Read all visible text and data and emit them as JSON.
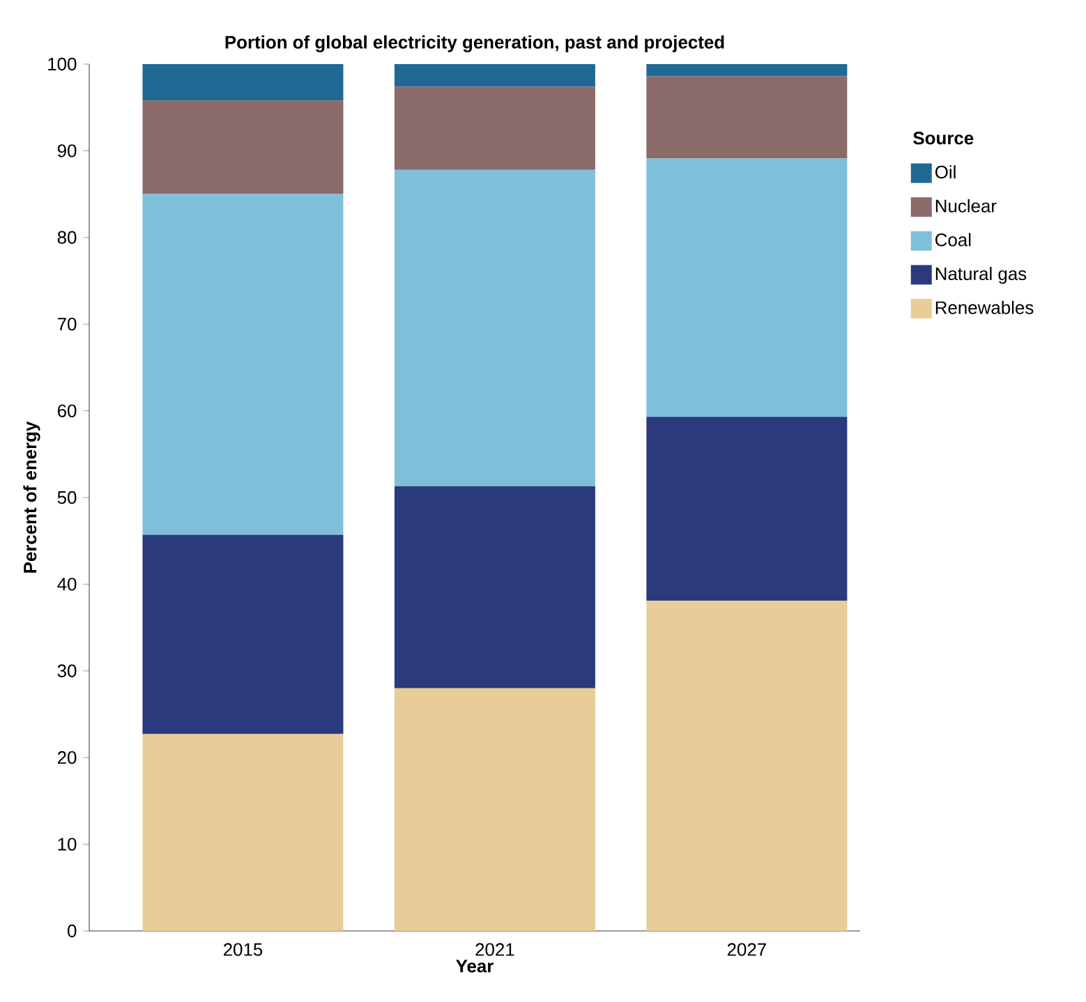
{
  "chart_data": {
    "type": "bar",
    "title": "Portion of global electricity generation, past and projected",
    "xlabel": "Year",
    "ylabel": "Percent of energy",
    "legend_title": "Source",
    "categories": [
      "2015",
      "2021",
      "2027"
    ],
    "series": [
      {
        "name": "Renewables",
        "color": "#e8cd98",
        "values": [
          22.7,
          28.0,
          38.1
        ]
      },
      {
        "name": "Natural gas",
        "color": "#2b3a7d",
        "values": [
          23.0,
          23.3,
          21.2
        ]
      },
      {
        "name": "Coal",
        "color": "#7fbfd9",
        "values": [
          39.3,
          36.5,
          29.8
        ]
      },
      {
        "name": "Nuclear",
        "color": "#8b6a6a",
        "values": [
          10.8,
          9.6,
          9.5
        ]
      },
      {
        "name": "Oil",
        "color": "#1f6a94",
        "values": [
          4.2,
          2.6,
          1.4
        ]
      }
    ],
    "stacked": true,
    "ylim": [
      0,
      100
    ],
    "yticks": [
      0,
      10,
      20,
      30,
      40,
      50,
      60,
      70,
      80,
      90,
      100
    ],
    "legend": "right"
  }
}
